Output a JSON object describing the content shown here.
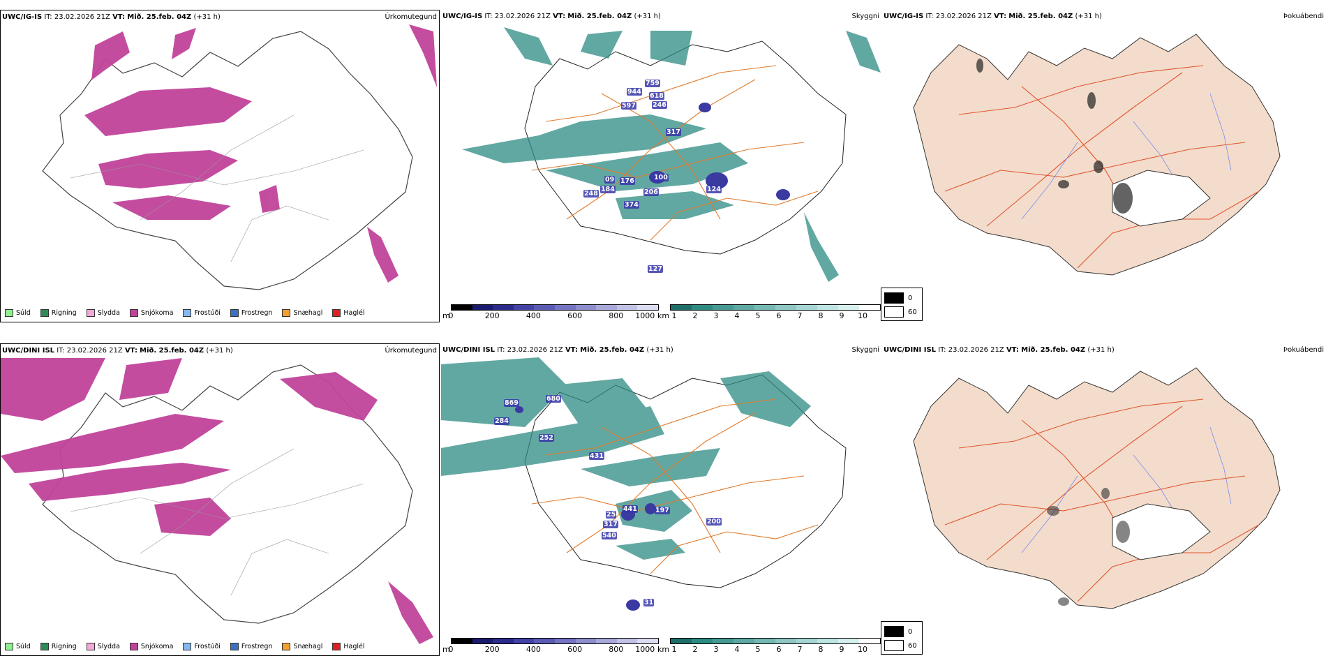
{
  "rows": [
    {
      "model": "UWC/IG-IS",
      "it": "IT: 23.02.2026 21Z",
      "vt_label": "VT:",
      "vt": "Mið. 25.feb. 04Z",
      "lead": "(+31 h)",
      "vis_labels": [
        "944",
        "759",
        "618",
        "597",
        "246",
        "317",
        "100",
        "09",
        "176",
        "184",
        "248",
        "374",
        "206",
        "124",
        "127"
      ],
      "fog_values": [
        "0",
        "60"
      ]
    },
    {
      "model": "UWC/DINI ISL",
      "it": "IT: 23.02.2026 21Z",
      "vt_label": "VT:",
      "vt": "Mið. 25.feb. 04Z",
      "lead": "(+31 h)",
      "vis_labels": [
        "869",
        "680",
        "284",
        "252",
        "431",
        "441",
        "197",
        "200",
        "25",
        "317",
        "540",
        "31"
      ],
      "fog_values": [
        "0",
        "60"
      ]
    }
  ],
  "panel_titles": {
    "precip": "Úrkomutegund",
    "vis": "Skyggni",
    "fog": "Þokuábendi"
  },
  "precip_legend": [
    {
      "label": "Súld",
      "color": "#90ee90"
    },
    {
      "label": "Rigning",
      "color": "#2e8b57"
    },
    {
      "label": "Slydda",
      "color": "#f4a6d7"
    },
    {
      "label": "Snjókoma",
      "color": "#c0439a"
    },
    {
      "label": "Frostúði",
      "color": "#87b7f0"
    },
    {
      "label": "Frostregn",
      "color": "#3a70c0"
    },
    {
      "label": "Snæhagl",
      "color": "#f0a030"
    },
    {
      "label": "Haglél",
      "color": "#e02020"
    }
  ],
  "elev_bar": {
    "unit": "m",
    "ticks": [
      "0",
      "200",
      "400",
      "600",
      "800",
      "1000"
    ]
  },
  "vis_bar": {
    "unit": "km",
    "ticks": [
      "1",
      "2",
      "3",
      "4",
      "5",
      "6",
      "7",
      "8",
      "9",
      "10"
    ]
  },
  "colors": {
    "snow": "#c0439a",
    "teal": "#2e8b83",
    "road": "#e07a2a",
    "land": "#f3dccb",
    "river": "#7a8cf0"
  }
}
